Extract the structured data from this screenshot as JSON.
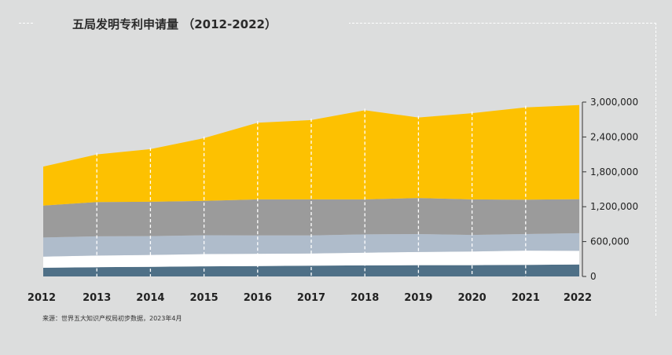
{
  "title": "五局发明专利申请量 （2012-2022）",
  "source": "来源：世界五大知识产权局初步数据，2023年4月",
  "chart_data": {
    "type": "area",
    "stacked": true,
    "x": [
      "2012",
      "2013",
      "2014",
      "2015",
      "2016",
      "2017",
      "2018",
      "2019",
      "2020",
      "2021",
      "2022"
    ],
    "ylim": [
      0,
      3000000
    ],
    "yticks": [
      0,
      600000,
      1200000,
      1800000,
      2400000,
      3000000
    ],
    "ytick_labels": [
      "0",
      "600,000",
      "1,200,000",
      "1,800,000",
      "2,400,000",
      "3,000,000"
    ],
    "grid": "vertical dashed",
    "legend": "none",
    "series": [
      {
        "color": "#4f7087",
        "values": [
          150000,
          160000,
          165000,
          175000,
          180000,
          185000,
          190000,
          195000,
          195000,
          200000,
          205000
        ]
      },
      {
        "color": "#ffffff",
        "values": [
          190000,
          200000,
          205000,
          210000,
          210000,
          210000,
          220000,
          225000,
          235000,
          245000,
          235000
        ]
      },
      {
        "color": "#afbccb",
        "values": [
          330000,
          330000,
          325000,
          325000,
          315000,
          310000,
          315000,
          310000,
          285000,
          285000,
          305000
        ]
      },
      {
        "color": "#9b9b9b",
        "values": [
          550000,
          590000,
          590000,
          590000,
          620000,
          620000,
          600000,
          620000,
          610000,
          590000,
          585000
        ]
      },
      {
        "color": "#fdc101",
        "values": [
          670000,
          820000,
          905000,
          1080000,
          1320000,
          1365000,
          1535000,
          1385000,
          1485000,
          1590000,
          1620000
        ]
      }
    ]
  }
}
